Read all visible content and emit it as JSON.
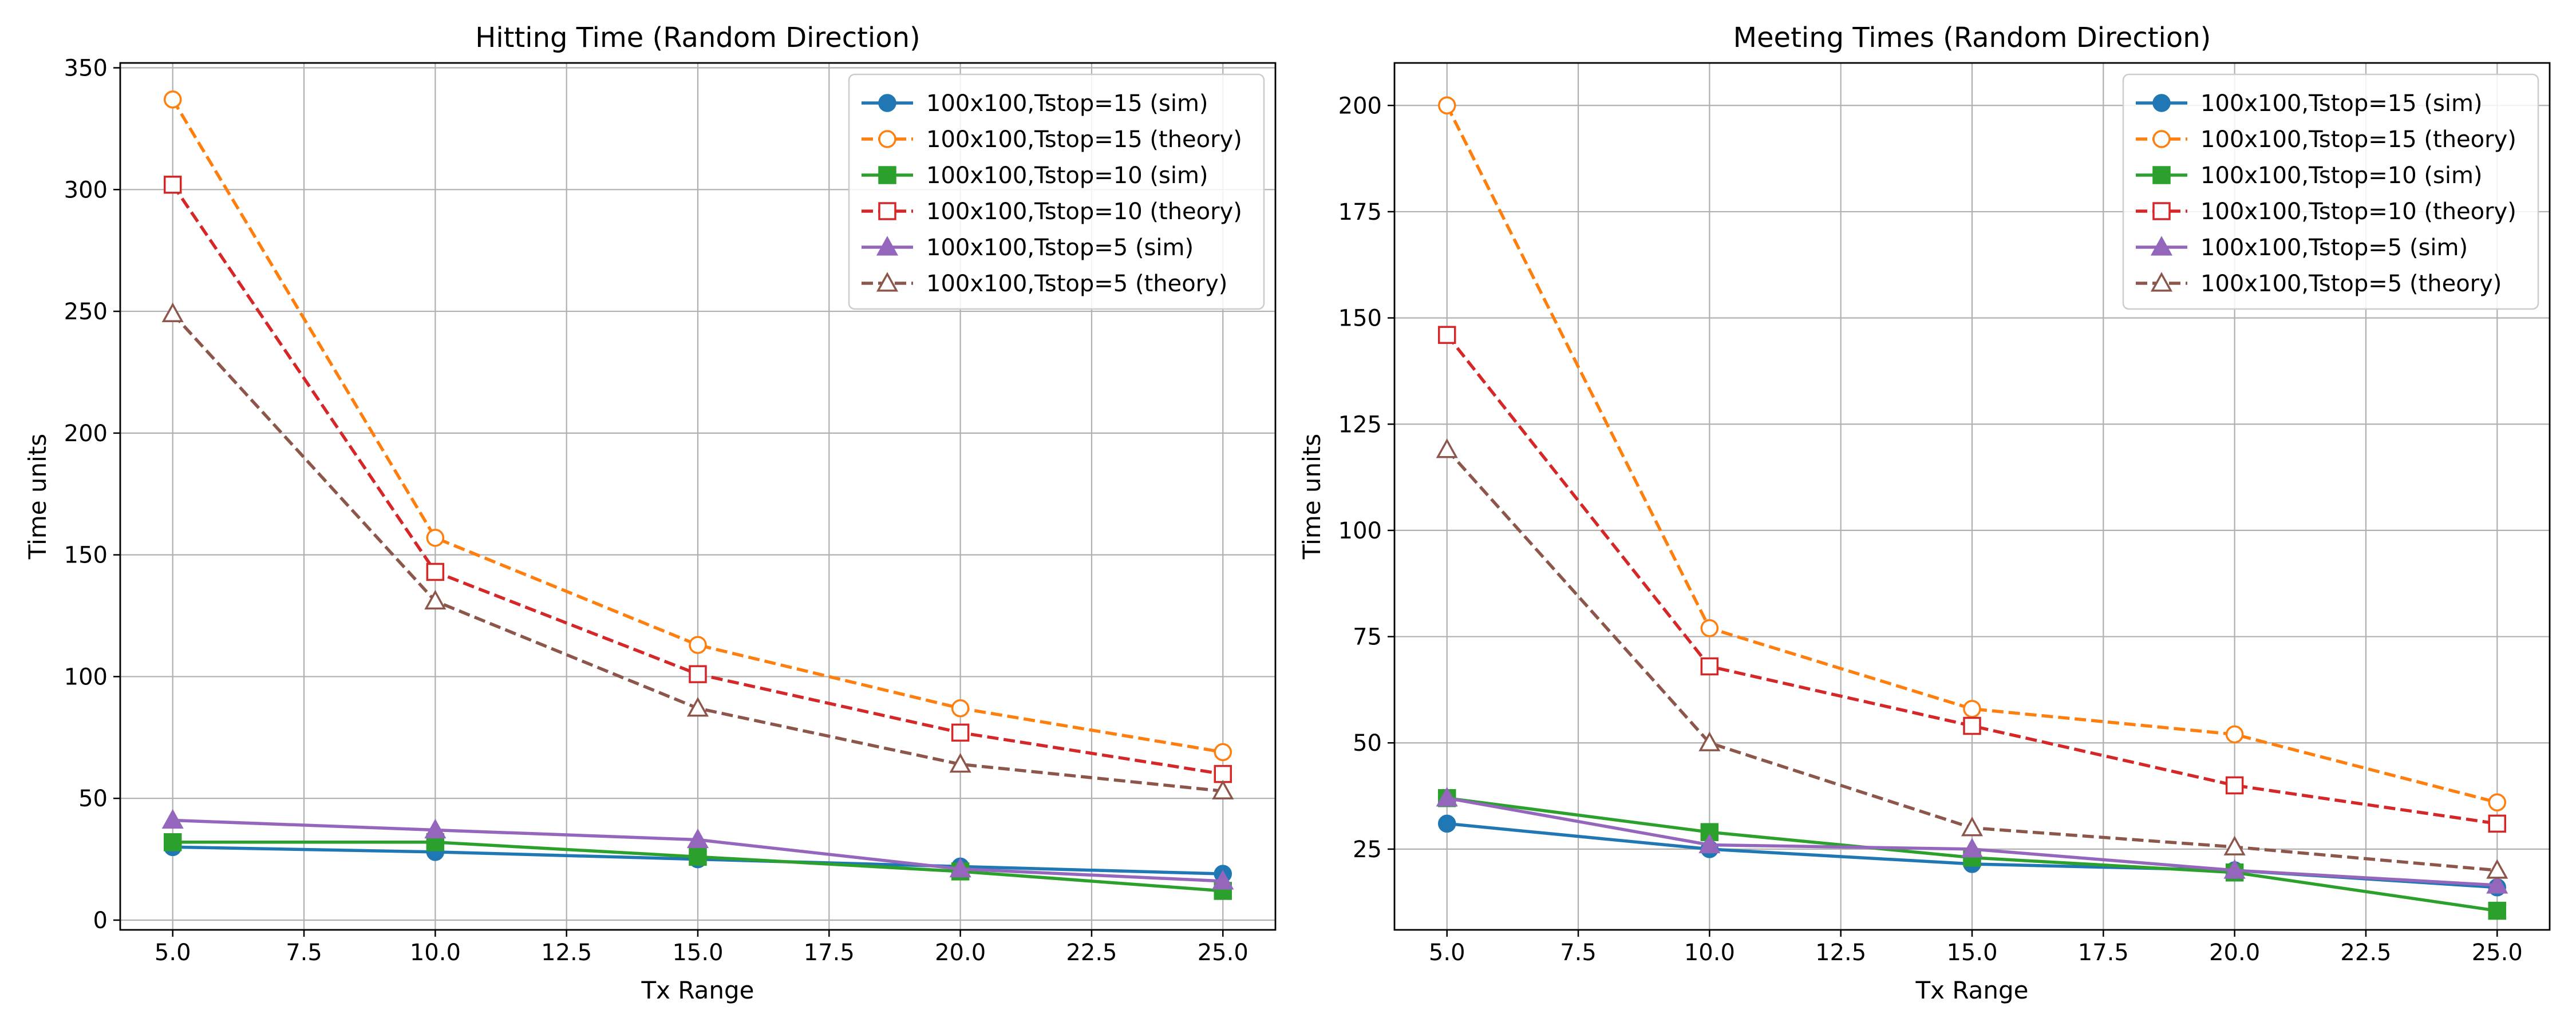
{
  "chart_data": [
    {
      "type": "line",
      "title": "Hitting Time (Random Direction)",
      "xlabel": "Tx Range",
      "ylabel": "Time units",
      "xlim": [
        4.0,
        26.0
      ],
      "ylim": [
        -4,
        352
      ],
      "xticks": [
        "5.0",
        "7.5",
        "10.0",
        "12.5",
        "15.0",
        "17.5",
        "20.0",
        "22.5",
        "25.0"
      ],
      "yticks": [
        "0",
        "50",
        "100",
        "150",
        "200",
        "250",
        "300",
        "350"
      ],
      "grid": true,
      "legend_position": "top-right",
      "x": [
        5,
        10,
        15,
        20,
        25
      ],
      "series": [
        {
          "name": "100x100,Tstop=15 (sim)",
          "values": [
            30,
            28,
            25,
            22,
            19
          ],
          "color": "#1f77b4",
          "marker": "circle",
          "filled": true,
          "dashed": false
        },
        {
          "name": "100x100,Tstop=15 (theory)",
          "values": [
            337,
            157,
            113,
            87,
            69
          ],
          "color": "#ff7f0e",
          "marker": "circle",
          "filled": false,
          "dashed": true
        },
        {
          "name": "100x100,Tstop=10 (sim)",
          "values": [
            32,
            32,
            26,
            20,
            12
          ],
          "color": "#2ca02c",
          "marker": "square",
          "filled": true,
          "dashed": false
        },
        {
          "name": "100x100,Tstop=10 (theory)",
          "values": [
            302,
            143,
            101,
            77,
            60
          ],
          "color": "#d62728",
          "marker": "square",
          "filled": false,
          "dashed": true
        },
        {
          "name": "100x100,Tstop=5 (sim)",
          "values": [
            41,
            37,
            33,
            21,
            16
          ],
          "color": "#9467bd",
          "marker": "triangle",
          "filled": true,
          "dashed": false
        },
        {
          "name": "100x100,Tstop=5 (theory)",
          "values": [
            249,
            131,
            87,
            64,
            53
          ],
          "color": "#8c564b",
          "marker": "triangle",
          "filled": false,
          "dashed": true
        }
      ]
    },
    {
      "type": "line",
      "title": "Meeting Times (Random Direction)",
      "xlabel": "Tx Range",
      "ylabel": "Time units",
      "xlim": [
        4.0,
        26.0
      ],
      "ylim": [
        6,
        210
      ],
      "xticks": [
        "5.0",
        "7.5",
        "10.0",
        "12.5",
        "15.0",
        "17.5",
        "20.0",
        "22.5",
        "25.0"
      ],
      "yticks": [
        "25",
        "50",
        "75",
        "100",
        "125",
        "150",
        "175",
        "200"
      ],
      "grid": true,
      "legend_position": "top-right",
      "x": [
        5,
        10,
        15,
        20,
        25
      ],
      "series": [
        {
          "name": "100x100,Tstop=15 (sim)",
          "values": [
            31,
            25,
            21.5,
            20,
            16
          ],
          "color": "#1f77b4",
          "marker": "circle",
          "filled": true,
          "dashed": false
        },
        {
          "name": "100x100,Tstop=15 (theory)",
          "values": [
            200,
            77,
            58,
            52,
            36
          ],
          "color": "#ff7f0e",
          "marker": "circle",
          "filled": false,
          "dashed": true
        },
        {
          "name": "100x100,Tstop=10 (sim)",
          "values": [
            37,
            29,
            23,
            19.5,
            10.5
          ],
          "color": "#2ca02c",
          "marker": "square",
          "filled": true,
          "dashed": false
        },
        {
          "name": "100x100,Tstop=10 (theory)",
          "values": [
            146,
            68,
            54,
            40,
            31
          ],
          "color": "#d62728",
          "marker": "square",
          "filled": false,
          "dashed": true
        },
        {
          "name": "100x100,Tstop=5 (sim)",
          "values": [
            37,
            26,
            25,
            20,
            16.5
          ],
          "color": "#9467bd",
          "marker": "triangle",
          "filled": true,
          "dashed": false
        },
        {
          "name": "100x100,Tstop=5 (theory)",
          "values": [
            119,
            50,
            30,
            25.5,
            20
          ],
          "color": "#8c564b",
          "marker": "triangle",
          "filled": false,
          "dashed": true
        }
      ]
    }
  ]
}
